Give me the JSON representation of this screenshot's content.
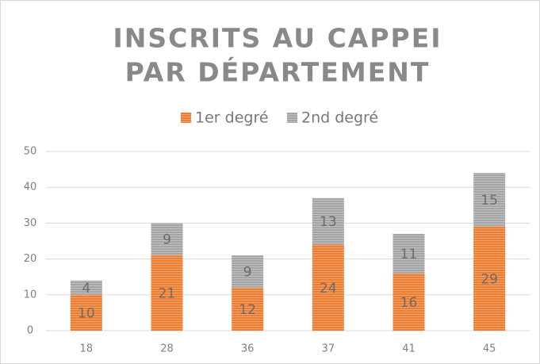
{
  "chart_data": {
    "type": "stacked_bar",
    "title": [
      "INSCRITS AU CAPPEI",
      "PAR DÉPARTEMENT"
    ],
    "categories": [
      "18",
      "28",
      "36",
      "37",
      "41",
      "45"
    ],
    "series": [
      {
        "name": "1er degré",
        "color": "#ed7d31",
        "values": [
          10,
          21,
          12,
          24,
          16,
          29
        ]
      },
      {
        "name": "2nd degré",
        "color": "#a5a5a5",
        "values": [
          4,
          9,
          9,
          13,
          11,
          15
        ]
      }
    ],
    "ylim": [
      0,
      50
    ],
    "yticks": [
      0,
      10,
      20,
      30,
      40,
      50
    ],
    "grid": true,
    "legend": "top"
  }
}
